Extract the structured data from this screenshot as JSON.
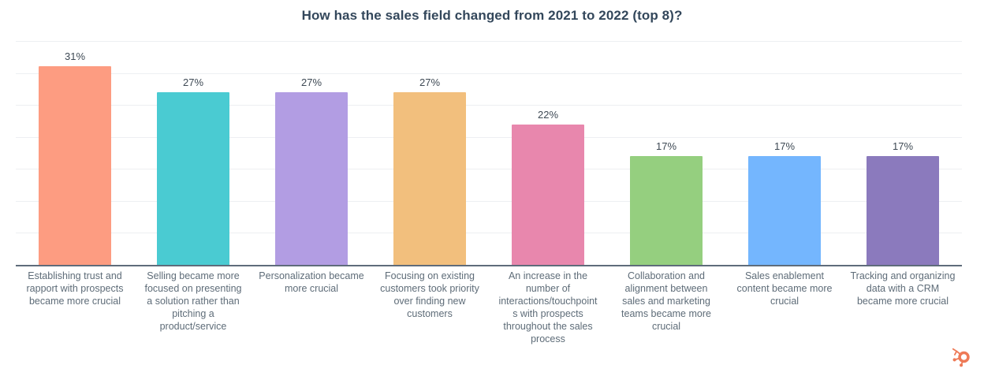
{
  "title": "How has the sales field changed from 2021 to 2022 (top 8)?",
  "chart_data": {
    "type": "bar",
    "title": "How has the sales field changed from 2021 to 2022 (top 8)?",
    "categories": [
      "Establishing trust and\nrapport with prospects\nbecame more crucial",
      "Selling became more\nfocused on presenting\na solution rather than\npitching a\nproduct/service",
      "Personalization became\nmore crucial",
      "Focusing on existing\ncustomers took priority\nover finding new\ncustomers",
      "An increase in the\nnumber of\ninteractions/touchpoint\ns with prospects\nthroughout the sales\nprocess",
      "Collaboration and\nalignment between\nsales and marketing\nteams became more\ncrucial",
      "Sales enablement\ncontent became more\ncrucial",
      "Tracking and organizing\ndata with a CRM\nbecame more crucial"
    ],
    "values": [
      31,
      27,
      27,
      27,
      22,
      17,
      17,
      17
    ],
    "value_labels": [
      "31%",
      "27%",
      "27%",
      "27%",
      "22%",
      "17%",
      "17%",
      "17%"
    ],
    "bar_colors": [
      "#fd9c81",
      "#4acbd2",
      "#b29de3",
      "#f2bf7d",
      "#e887ad",
      "#95cf7f",
      "#74b6fe",
      "#8b7abd"
    ],
    "xlabel": "",
    "ylabel": "",
    "ylim": [
      0,
      35
    ],
    "grid_step": 5,
    "grid": true,
    "legend_position": "none",
    "axis_tick_labels_visible": false
  },
  "style": {
    "title_color": "#33475b",
    "value_label_color": "#3e4954",
    "category_label_color": "#5e6c78",
    "gridline_color": "#edeff2",
    "axis_color": "#5f6c7b",
    "background_color": "#ffffff"
  },
  "branding": {
    "logo": "hubspot-sprocket-icon",
    "logo_color": "#ee7a57"
  }
}
